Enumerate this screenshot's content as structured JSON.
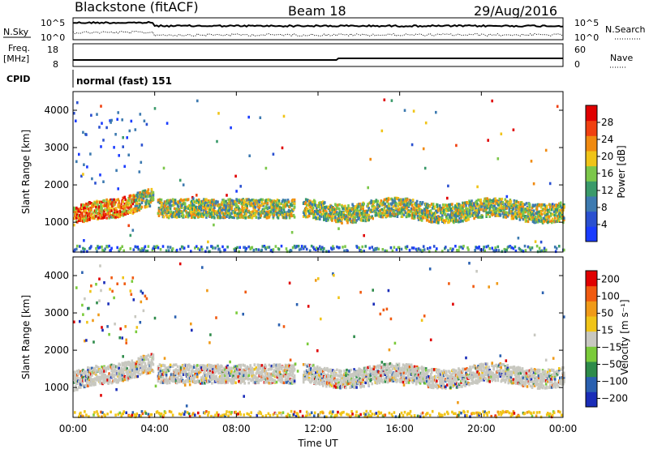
{
  "header": {
    "site": "Blackstone (fitACF)",
    "beam": "Beam 18",
    "date": "29/Aug/2016",
    "cpid_mode": "normal (fast) 151"
  },
  "strip_labels": {
    "nsky": "N.Sky",
    "nsearch": "N.Search",
    "freq": "Freq.",
    "freq_unit": "[MHz]",
    "nave": "Nave",
    "cpid": "CPID",
    "nsky_top": "10^5",
    "nsky_bottom": "10^0",
    "nsearch_top": "10^5",
    "nsearch_bottom": "10^0",
    "freq_top": "18",
    "freq_bottom": "8",
    "nave_top": "60",
    "nave_bottom": "0"
  },
  "chart_data": [
    {
      "type": "heatmap",
      "panel": "power",
      "ylabel": "Slant Range [km]",
      "ylim": [
        200,
        4500
      ],
      "yticks": [
        "1000",
        "2000",
        "3000",
        "4000"
      ],
      "colorbar_label": "Power [dB]",
      "colorbar_ticks": [
        "4",
        "8",
        "12",
        "16",
        "20",
        "24",
        "28"
      ],
      "colorbar_range": [
        0,
        32
      ],
      "colors": [
        "#1a3cff",
        "#2a50d0",
        "#3d7ab0",
        "#3a9a6a",
        "#7cc74a",
        "#f0c418",
        "#f08a10",
        "#f04010",
        "#e00000"
      ]
    },
    {
      "type": "heatmap",
      "panel": "velocity",
      "ylabel": "Slant Range [km]",
      "ylim": [
        200,
        4500
      ],
      "yticks": [
        "1000",
        "2000",
        "3000",
        "4000"
      ],
      "colorbar_label": "Velocity [m s⁻¹]",
      "colorbar_ticks": [
        "200",
        "100",
        "50",
        "15",
        "−15",
        "−50",
        "−100",
        "−200"
      ],
      "colors": [
        "#1a2db8",
        "#2a60b0",
        "#2e8b4a",
        "#7acb3a",
        "#c8c8c0",
        "#f0c418",
        "#f09a18",
        "#f05a10",
        "#e00000"
      ]
    }
  ],
  "x_axis": {
    "label": "Time UT",
    "ticks": [
      "00:00",
      "04:00",
      "08:00",
      "12:00",
      "16:00",
      "20:00",
      "00:00"
    ]
  }
}
